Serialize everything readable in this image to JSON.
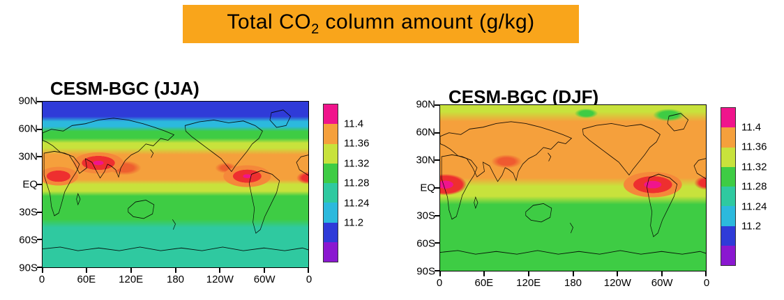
{
  "figure_title": {
    "pre": "Total CO",
    "sub": "2",
    "post": " column amount (g/kg)",
    "background": "#F9A51B"
  },
  "colorbar": {
    "labels_top_to_bottom": [
      "11.4",
      "11.36",
      "11.32",
      "11.28",
      "11.24",
      "11.2"
    ],
    "segment_colors_top_to_bottom": [
      "#f0148c",
      "#f5a03c",
      "#c8e23c",
      "#3ecc44",
      "#2fc9a0",
      "#2cb9dd",
      "#2f3bd8",
      "#8a18d0"
    ]
  },
  "chart_data": [
    {
      "type": "heatmap",
      "title": "CESM-BGC (JJA)",
      "variable": "Total CO2 column amount",
      "units": "g/kg",
      "lat_ticks": [
        "90N",
        "60N",
        "30N",
        "EQ",
        "30S",
        "60S",
        "90S"
      ],
      "lon_ticks": [
        "0",
        "60E",
        "120E",
        "180",
        "120W",
        "60W",
        "0"
      ],
      "colorbar_levels": [
        11.2,
        11.24,
        11.28,
        11.32,
        11.36,
        11.4
      ],
      "zonal_bands": [
        {
          "lat": "90N-65N",
          "approx_value": 11.18
        },
        {
          "lat": "65N-55N",
          "approx_value": 11.22
        },
        {
          "lat": "55N-40N",
          "approx_value": 11.3
        },
        {
          "lat": "40N-33N",
          "approx_value": 11.34
        },
        {
          "lat": "33N-5N",
          "approx_value": 11.38
        },
        {
          "lat": "5N-15S",
          "approx_value": 11.34
        },
        {
          "lat": "15S-55S",
          "approx_value": 11.3
        },
        {
          "lat": "55S-90S",
          "approx_value": 11.26
        }
      ],
      "hotspots": [
        {
          "region": "North-central Africa",
          "approx_value": 11.42
        },
        {
          "region": "South Asia / India",
          "approx_value": 11.42
        },
        {
          "region": "Southeast Asia",
          "approx_value": 11.4
        },
        {
          "region": "Northern South America",
          "approx_value": 11.42
        }
      ]
    },
    {
      "type": "heatmap",
      "title": "CESM-BGC (DJF)",
      "variable": "Total CO2 column amount",
      "units": "g/kg",
      "lat_ticks": [
        "90N",
        "60N",
        "30N",
        "EQ",
        "30S",
        "60S",
        "90S"
      ],
      "lon_ticks": [
        "0",
        "60E",
        "120E",
        "180",
        "120W",
        "60W",
        "0"
      ],
      "colorbar_levels": [
        11.2,
        11.24,
        11.28,
        11.32,
        11.36,
        11.4
      ],
      "zonal_bands": [
        {
          "lat": "90N-60N",
          "approx_value": 11.35
        },
        {
          "lat": "60N-5S",
          "approx_value": 11.38
        },
        {
          "lat": "5S-25S",
          "approx_value": 11.34
        },
        {
          "lat": "25S-90S",
          "approx_value": 11.3
        }
      ],
      "hotspots": [
        {
          "region": "Equatorial Africa",
          "approx_value": 11.42
        },
        {
          "region": "Amazon / northern South America",
          "approx_value": 11.42
        },
        {
          "region": "South Asia",
          "approx_value": 11.4
        }
      ]
    }
  ]
}
